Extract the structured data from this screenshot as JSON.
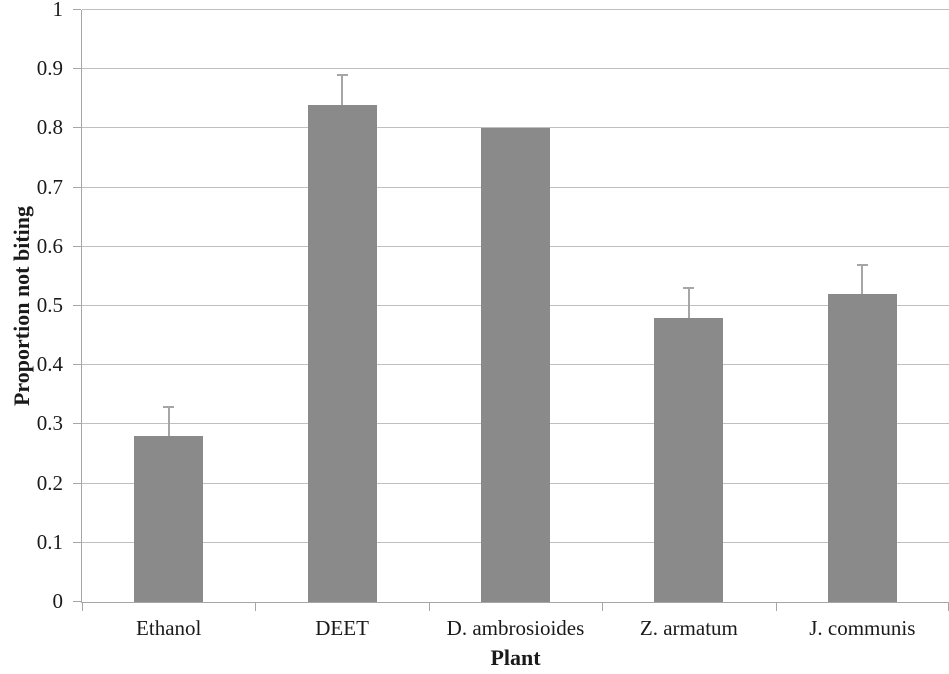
{
  "chart_data": {
    "type": "bar",
    "title": "",
    "xlabel": "Plant",
    "ylabel": "Proportion not biting",
    "categories": [
      "Ethanol",
      "DEET",
      "D. ambrosioides",
      "Z. armatum",
      "J. communis"
    ],
    "values": [
      0.28,
      0.84,
      0.8,
      0.48,
      0.52
    ],
    "errors_plus": [
      0.05,
      0.05,
      0,
      0.05,
      0.05
    ],
    "ylim": [
      0,
      1
    ],
    "ytick_step": 0.1,
    "ytick_labels": [
      "0",
      "0.1",
      "0.2",
      "0.3",
      "0.4",
      "0.5",
      "0.6",
      "0.7",
      "0.8",
      "0.9",
      "1"
    ],
    "grid": true,
    "legend": false,
    "colors": {
      "bar": "#8a8a8a",
      "gridline": "#bfbfbf",
      "axis": "#a6a6a6",
      "error_bar": "#a6a6a6",
      "text": "#1a1a1a",
      "background": "#ffffff"
    }
  }
}
